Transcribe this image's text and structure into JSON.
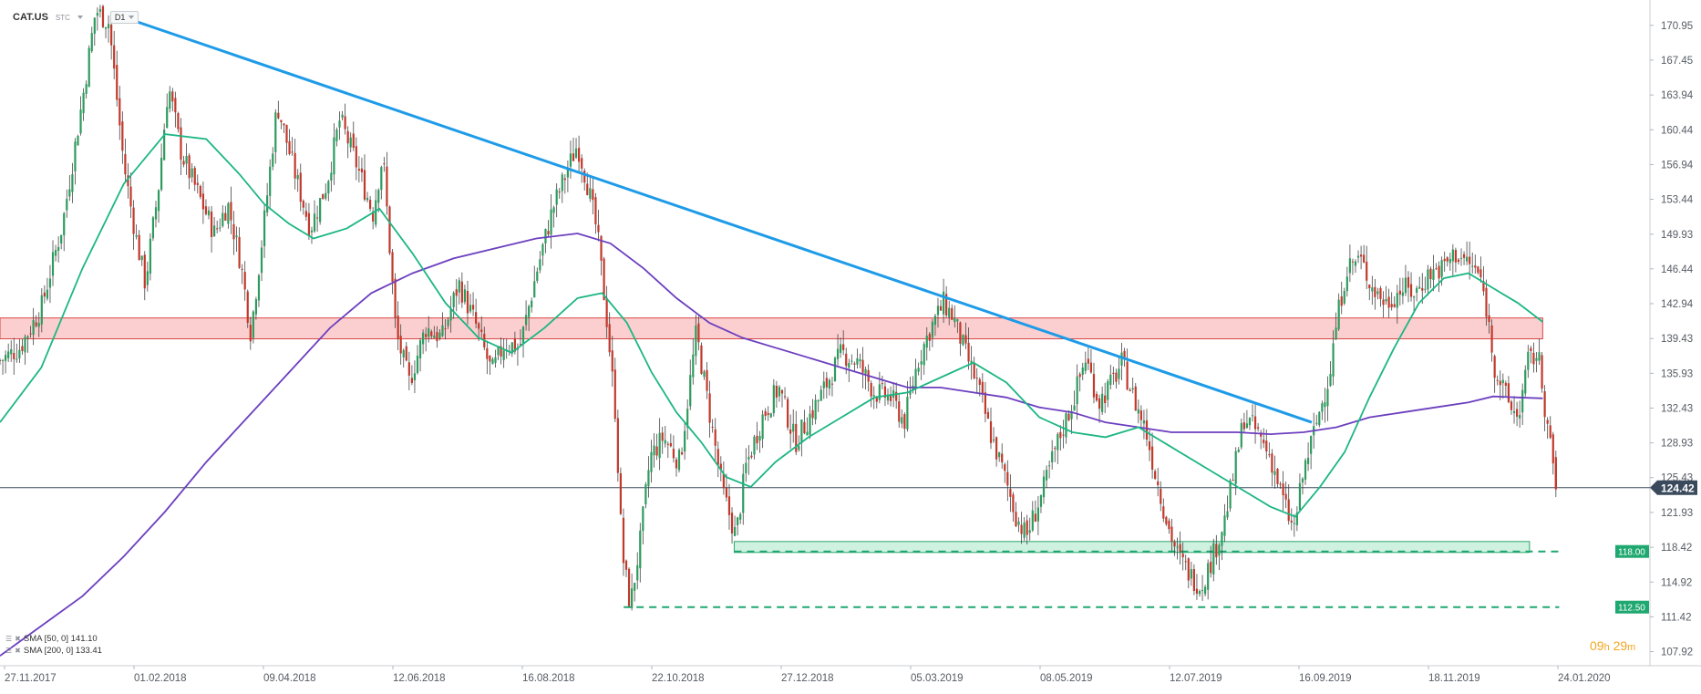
{
  "header": {
    "symbol": "CAT.US",
    "source": "STC",
    "timeframe": "D1"
  },
  "legend": [
    {
      "label": "SMA [50, 0] 141.10",
      "color": "#1cb684"
    },
    {
      "label": "SMA [200, 0] 133.41",
      "color": "#6c3fbf"
    }
  ],
  "timer": {
    "hours": "09",
    "hours_unit": "h",
    "minutes": "29",
    "minutes_unit": "m"
  },
  "colors": {
    "up": "#2e9b5e",
    "down": "#c0392b",
    "sma50": "#1cb684",
    "sma200": "#6c3fbf",
    "trendline": "#1e9be8",
    "resistance_zone": "#f7a8a8",
    "support_zone": "#a8e6c6",
    "dashed_support": "#1fa870",
    "price_badge": "#3a4a5c",
    "timer": "#f5a623"
  },
  "chart_data": {
    "type": "candlestick",
    "symbol": "CAT.US",
    "timeframe": "D1",
    "ylim": [
      106.5,
      173.5
    ],
    "y_ticks": [
      170.95,
      167.45,
      163.94,
      160.44,
      156.94,
      153.44,
      149.93,
      146.44,
      142.94,
      139.43,
      135.93,
      132.43,
      128.93,
      125.43,
      121.93,
      118.42,
      114.92,
      111.42,
      107.92
    ],
    "x_labels": [
      "27.11.2017",
      "01.02.2018",
      "09.04.2018",
      "12.06.2018",
      "16.08.2018",
      "22.10.2018",
      "27.12.2018",
      "05.03.2019",
      "08.05.2019",
      "12.07.2019",
      "16.09.2019",
      "18.11.2019",
      "24.01.2020"
    ],
    "last_price": {
      "value": 124.42,
      "label": "124.42"
    },
    "support_labels": [
      {
        "value": 118.0,
        "label": "118.00"
      },
      {
        "value": 112.5,
        "label": "112.50"
      }
    ],
    "zones": [
      {
        "name": "resistance",
        "low": 139.4,
        "high": 141.5,
        "from": 0.0,
        "to": 0.935
      },
      {
        "name": "support",
        "low": 117.9,
        "high": 119.0,
        "from": 0.445,
        "to": 0.927
      }
    ],
    "dashed_lines": [
      {
        "value": 118.0,
        "from": 0.445,
        "to": 0.945
      },
      {
        "value": 112.4,
        "from": 0.378,
        "to": 0.945
      }
    ],
    "trendline": {
      "start": [
        0.069,
        172.1
      ],
      "end": [
        0.795,
        131.0
      ]
    },
    "price_path": [
      [
        0.0,
        137.2
      ],
      [
        0.012,
        138.5
      ],
      [
        0.025,
        142.5
      ],
      [
        0.038,
        151.0
      ],
      [
        0.05,
        163.5
      ],
      [
        0.058,
        172.5
      ],
      [
        0.066,
        171.2
      ],
      [
        0.075,
        157.0
      ],
      [
        0.082,
        150.0
      ],
      [
        0.088,
        145.0
      ],
      [
        0.096,
        154.5
      ],
      [
        0.102,
        165.0
      ],
      [
        0.11,
        158.0
      ],
      [
        0.12,
        154.0
      ],
      [
        0.13,
        150.0
      ],
      [
        0.138,
        153.0
      ],
      [
        0.146,
        147.0
      ],
      [
        0.152,
        140.0
      ],
      [
        0.16,
        151.0
      ],
      [
        0.168,
        163.0
      ],
      [
        0.178,
        156.5
      ],
      [
        0.188,
        150.5
      ],
      [
        0.198,
        155.0
      ],
      [
        0.206,
        161.5
      ],
      [
        0.215,
        157.5
      ],
      [
        0.226,
        152.0
      ],
      [
        0.232,
        158.0
      ],
      [
        0.24,
        140.0
      ],
      [
        0.248,
        135.0
      ],
      [
        0.258,
        140.5
      ],
      [
        0.268,
        139.5
      ],
      [
        0.278,
        145.0
      ],
      [
        0.288,
        141.0
      ],
      [
        0.298,
        136.0
      ],
      [
        0.306,
        139.0
      ],
      [
        0.315,
        138.5
      ],
      [
        0.325,
        146.0
      ],
      [
        0.335,
        152.5
      ],
      [
        0.343,
        156.0
      ],
      [
        0.35,
        159.0
      ],
      [
        0.356,
        155.0
      ],
      [
        0.362,
        150.0
      ],
      [
        0.368,
        141.0
      ],
      [
        0.373,
        132.0
      ],
      [
        0.377,
        118.0
      ],
      [
        0.382,
        112.5
      ],
      [
        0.388,
        119.0
      ],
      [
        0.394,
        127.5
      ],
      [
        0.402,
        129.5
      ],
      [
        0.412,
        127.0
      ],
      [
        0.422,
        140.0
      ],
      [
        0.43,
        132.0
      ],
      [
        0.438,
        124.0
      ],
      [
        0.446,
        119.5
      ],
      [
        0.452,
        126.5
      ],
      [
        0.462,
        131.5
      ],
      [
        0.472,
        134.5
      ],
      [
        0.482,
        129.0
      ],
      [
        0.492,
        132.0
      ],
      [
        0.5,
        134.5
      ],
      [
        0.51,
        138.0
      ],
      [
        0.52,
        137.0
      ],
      [
        0.53,
        134.0
      ],
      [
        0.54,
        133.5
      ],
      [
        0.548,
        131.0
      ],
      [
        0.556,
        137.0
      ],
      [
        0.564,
        140.5
      ],
      [
        0.572,
        143.0
      ],
      [
        0.578,
        141.5
      ],
      [
        0.585,
        138.0
      ],
      [
        0.592,
        135.0
      ],
      [
        0.6,
        130.0
      ],
      [
        0.608,
        126.0
      ],
      [
        0.616,
        121.5
      ],
      [
        0.622,
        119.5
      ],
      [
        0.632,
        124.0
      ],
      [
        0.64,
        128.5
      ],
      [
        0.65,
        133.0
      ],
      [
        0.658,
        137.5
      ],
      [
        0.666,
        133.0
      ],
      [
        0.674,
        135.0
      ],
      [
        0.68,
        137.0
      ],
      [
        0.688,
        133.0
      ],
      [
        0.694,
        130.5
      ],
      [
        0.7,
        126.0
      ],
      [
        0.708,
        120.5
      ],
      [
        0.714,
        117.5
      ],
      [
        0.722,
        115.5
      ],
      [
        0.728,
        114.5
      ],
      [
        0.734,
        117.0
      ],
      [
        0.742,
        121.0
      ],
      [
        0.748,
        126.0
      ],
      [
        0.754,
        131.5
      ],
      [
        0.762,
        130.0
      ],
      [
        0.77,
        127.5
      ],
      [
        0.778,
        123.0
      ],
      [
        0.784,
        120.0
      ],
      [
        0.79,
        126.0
      ],
      [
        0.798,
        131.0
      ],
      [
        0.806,
        136.0
      ],
      [
        0.81,
        141.0
      ],
      [
        0.816,
        146.5
      ],
      [
        0.824,
        147.5
      ],
      [
        0.832,
        144.5
      ],
      [
        0.84,
        143.0
      ],
      [
        0.85,
        144.5
      ],
      [
        0.858,
        144.0
      ],
      [
        0.866,
        146.0
      ],
      [
        0.874,
        146.5
      ],
      [
        0.882,
        148.0
      ],
      [
        0.89,
        147.0
      ],
      [
        0.896,
        146.0
      ],
      [
        0.9,
        143.5
      ],
      [
        0.906,
        136.5
      ],
      [
        0.914,
        133.0
      ],
      [
        0.92,
        131.5
      ],
      [
        0.926,
        137.0
      ],
      [
        0.932,
        138.0
      ],
      [
        0.938,
        130.5
      ],
      [
        0.943,
        124.4
      ]
    ],
    "sma50_path": [
      [
        0.0,
        131.0
      ],
      [
        0.025,
        136.5
      ],
      [
        0.05,
        146.5
      ],
      [
        0.075,
        155.0
      ],
      [
        0.1,
        160.0
      ],
      [
        0.125,
        159.5
      ],
      [
        0.145,
        156.0
      ],
      [
        0.16,
        153.0
      ],
      [
        0.175,
        151.0
      ],
      [
        0.19,
        149.5
      ],
      [
        0.21,
        150.5
      ],
      [
        0.23,
        152.5
      ],
      [
        0.25,
        148.0
      ],
      [
        0.27,
        143.0
      ],
      [
        0.29,
        139.5
      ],
      [
        0.31,
        138.0
      ],
      [
        0.33,
        140.5
      ],
      [
        0.35,
        143.5
      ],
      [
        0.365,
        144.0
      ],
      [
        0.38,
        141.0
      ],
      [
        0.395,
        136.0
      ],
      [
        0.41,
        132.0
      ],
      [
        0.425,
        129.0
      ],
      [
        0.44,
        125.5
      ],
      [
        0.455,
        124.5
      ],
      [
        0.47,
        127.0
      ],
      [
        0.49,
        129.5
      ],
      [
        0.51,
        131.5
      ],
      [
        0.53,
        133.5
      ],
      [
        0.55,
        134.0
      ],
      [
        0.57,
        135.5
      ],
      [
        0.59,
        137.0
      ],
      [
        0.61,
        135.0
      ],
      [
        0.63,
        131.5
      ],
      [
        0.65,
        130.0
      ],
      [
        0.67,
        129.5
      ],
      [
        0.69,
        130.5
      ],
      [
        0.71,
        128.5
      ],
      [
        0.73,
        126.5
      ],
      [
        0.75,
        124.5
      ],
      [
        0.77,
        122.5
      ],
      [
        0.785,
        121.5
      ],
      [
        0.8,
        124.5
      ],
      [
        0.815,
        128.0
      ],
      [
        0.83,
        133.5
      ],
      [
        0.845,
        138.5
      ],
      [
        0.86,
        143.0
      ],
      [
        0.875,
        145.5
      ],
      [
        0.89,
        146.0
      ],
      [
        0.905,
        144.5
      ],
      [
        0.92,
        143.0
      ],
      [
        0.935,
        141.1
      ]
    ],
    "sma200_path": [
      [
        0.0,
        107.5
      ],
      [
        0.025,
        110.5
      ],
      [
        0.05,
        113.5
      ],
      [
        0.075,
        117.5
      ],
      [
        0.1,
        122.0
      ],
      [
        0.125,
        127.0
      ],
      [
        0.15,
        131.5
      ],
      [
        0.175,
        136.0
      ],
      [
        0.2,
        140.5
      ],
      [
        0.225,
        144.0
      ],
      [
        0.25,
        146.0
      ],
      [
        0.275,
        147.5
      ],
      [
        0.3,
        148.5
      ],
      [
        0.325,
        149.5
      ],
      [
        0.35,
        150.0
      ],
      [
        0.37,
        149.0
      ],
      [
        0.39,
        146.5
      ],
      [
        0.41,
        143.5
      ],
      [
        0.43,
        141.0
      ],
      [
        0.45,
        139.5
      ],
      [
        0.47,
        138.5
      ],
      [
        0.49,
        137.5
      ],
      [
        0.51,
        136.5
      ],
      [
        0.53,
        135.5
      ],
      [
        0.55,
        134.5
      ],
      [
        0.57,
        134.5
      ],
      [
        0.59,
        134.0
      ],
      [
        0.61,
        133.5
      ],
      [
        0.63,
        132.5
      ],
      [
        0.65,
        132.0
      ],
      [
        0.67,
        131.0
      ],
      [
        0.69,
        130.5
      ],
      [
        0.71,
        130.0
      ],
      [
        0.73,
        130.0
      ],
      [
        0.75,
        130.0
      ],
      [
        0.77,
        129.8
      ],
      [
        0.79,
        130.0
      ],
      [
        0.81,
        130.5
      ],
      [
        0.83,
        131.5
      ],
      [
        0.85,
        132.0
      ],
      [
        0.87,
        132.5
      ],
      [
        0.89,
        133.0
      ],
      [
        0.905,
        133.6
      ],
      [
        0.92,
        133.5
      ],
      [
        0.935,
        133.41
      ]
    ]
  }
}
